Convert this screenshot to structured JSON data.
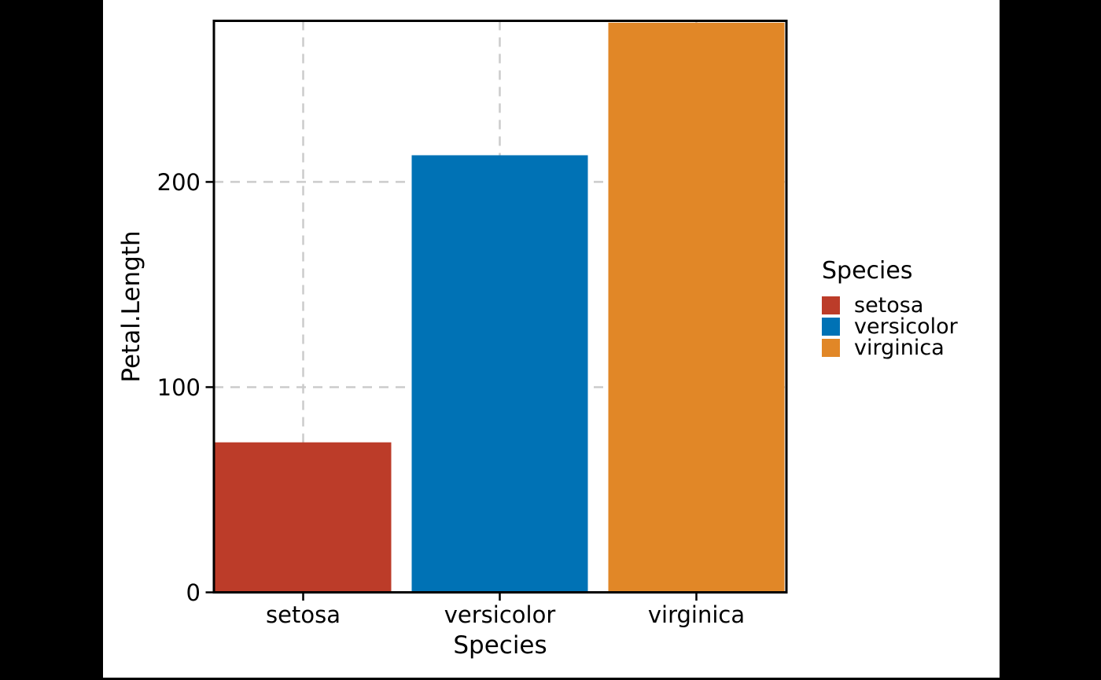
{
  "page": {
    "background": "#000000",
    "canvas_background": "#ffffff"
  },
  "chart_data": {
    "type": "bar",
    "title": "",
    "xlabel": "Species",
    "ylabel": "Petal.Length",
    "categories": [
      "setosa",
      "versicolor",
      "virginica"
    ],
    "values": [
      73.1,
      213,
      277.6
    ],
    "colors": [
      "#BC3C29",
      "#0072B5",
      "#E18727"
    ],
    "ylim": [
      0,
      278.5
    ],
    "yticks": [
      0,
      100,
      200
    ],
    "grid": "dashed",
    "grid_color": "#cbcbcb",
    "axis_color": "#000000",
    "legend": {
      "title": "Species",
      "position": "right",
      "items": [
        "setosa",
        "versicolor",
        "virginica"
      ]
    }
  }
}
